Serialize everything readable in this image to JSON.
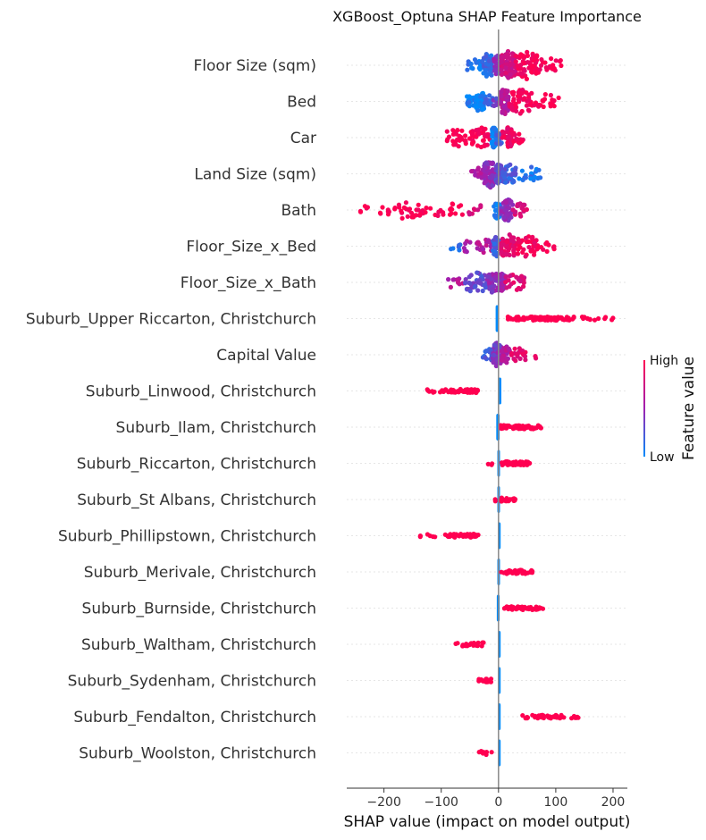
{
  "chart_data": {
    "type": "scatter",
    "subtype": "shap-beeswarm",
    "title": "XGBoost_Optuna SHAP Feature Importance",
    "xlabel": "SHAP value (impact on model output)",
    "xlim": [
      -265,
      225
    ],
    "xticks": [
      -200,
      -100,
      0,
      100,
      200
    ],
    "xtick_labels": [
      "−200",
      "−100",
      "0",
      "100",
      "200"
    ],
    "colorbar": {
      "label": "Feature value",
      "high": "High",
      "low": "Low"
    },
    "colors": {
      "low": "#008bfb",
      "mid": "#a020b0",
      "high": "#ff0051",
      "axis": "#888888",
      "grid": "#e6e6e6"
    },
    "features": [
      {
        "name": "Floor Size (sqm)",
        "mode": "cont",
        "segments": [
          [
            -60,
            -28,
            0.1,
            20
          ],
          [
            -28,
            -8,
            0.15,
            50
          ],
          [
            -8,
            5,
            0.45,
            40
          ],
          [
            5,
            30,
            0.75,
            70
          ],
          [
            30,
            70,
            0.95,
            60
          ],
          [
            70,
            112,
            1.0,
            20
          ]
        ]
      },
      {
        "name": "Bed",
        "mode": "cont",
        "segments": [
          [
            -55,
            -40,
            0.05,
            15
          ],
          [
            -40,
            -25,
            0.02,
            40
          ],
          [
            -25,
            -10,
            0.15,
            15
          ],
          [
            -10,
            2,
            0.35,
            10
          ],
          [
            2,
            18,
            0.6,
            60
          ],
          [
            18,
            60,
            0.95,
            50
          ],
          [
            60,
            105,
            1.0,
            20
          ]
        ]
      },
      {
        "name": "Car",
        "mode": "cont",
        "segments": [
          [
            -90,
            -50,
            1.0,
            30
          ],
          [
            -50,
            -15,
            1.0,
            40
          ],
          [
            -12,
            -4,
            0.02,
            40
          ],
          [
            -4,
            6,
            0.2,
            20
          ],
          [
            6,
            25,
            0.9,
            40
          ],
          [
            25,
            45,
            0.95,
            15
          ]
        ]
      },
      {
        "name": "Land Size (sqm)",
        "mode": "cont",
        "segments": [
          [
            -50,
            -25,
            0.6,
            15
          ],
          [
            -25,
            -5,
            0.45,
            60
          ],
          [
            -5,
            5,
            0.3,
            40
          ],
          [
            5,
            30,
            0.2,
            40
          ],
          [
            30,
            75,
            0.1,
            20
          ]
        ]
      },
      {
        "name": "Bath",
        "mode": "cont",
        "segments": [
          [
            -245,
            -200,
            1.0,
            8
          ],
          [
            -200,
            -130,
            1.0,
            30
          ],
          [
            -130,
            -60,
            1.0,
            20
          ],
          [
            -60,
            -10,
            0.8,
            8
          ],
          [
            -8,
            3,
            0.05,
            30
          ],
          [
            3,
            25,
            0.45,
            45
          ],
          [
            25,
            50,
            0.8,
            20
          ]
        ]
      },
      {
        "name": "Floor_Size_x_Bed",
        "mode": "cont",
        "segments": [
          [
            -95,
            -60,
            0.1,
            6
          ],
          [
            -60,
            -10,
            0.6,
            25
          ],
          [
            -10,
            3,
            0.2,
            40
          ],
          [
            3,
            30,
            0.85,
            50
          ],
          [
            30,
            70,
            0.95,
            40
          ],
          [
            70,
            98,
            1.0,
            10
          ]
        ]
      },
      {
        "name": "Floor_Size_x_Bath",
        "mode": "cont",
        "segments": [
          [
            -90,
            -60,
            0.6,
            10
          ],
          [
            -60,
            -20,
            0.3,
            40
          ],
          [
            -20,
            0,
            0.45,
            40
          ],
          [
            0,
            12,
            0.5,
            40
          ],
          [
            12,
            45,
            0.8,
            25
          ]
        ]
      },
      {
        "name": "Suburb_Upper Riccarton, Christchurch",
        "mode": "dummy",
        "line": [
          -5,
          0
        ],
        "reds": [
          [
            15,
            40,
            20
          ],
          [
            40,
            90,
            40
          ],
          [
            90,
            150,
            30
          ],
          [
            150,
            200,
            10
          ]
        ]
      },
      {
        "name": "Capital Value",
        "mode": "cont",
        "segments": [
          [
            -30,
            -10,
            0.2,
            15
          ],
          [
            -10,
            5,
            0.4,
            50
          ],
          [
            5,
            20,
            0.6,
            30
          ],
          [
            20,
            50,
            0.85,
            20
          ],
          [
            60,
            68,
            0.9,
            2
          ]
        ]
      },
      {
        "name": "Suburb_Linwood, Christchurch",
        "mode": "dummy",
        "line": [
          0,
          5
        ],
        "reds": [
          [
            -125,
            -95,
            10
          ],
          [
            -95,
            -65,
            20
          ],
          [
            -65,
            -35,
            30
          ]
        ]
      },
      {
        "name": "Suburb_Ilam, Christchurch",
        "mode": "dummy",
        "line": [
          -4,
          2
        ],
        "reds": [
          [
            3,
            40,
            35
          ],
          [
            40,
            78,
            30
          ]
        ]
      },
      {
        "name": "Suburb_Riccarton, Christchurch",
        "mode": "dummy",
        "line": [
          -2,
          2
        ],
        "reds": [
          [
            -20,
            -8,
            3
          ],
          [
            5,
            30,
            25
          ],
          [
            30,
            55,
            25
          ]
        ]
      },
      {
        "name": "Suburb_St Albans, Christchurch",
        "mode": "dummy",
        "line": [
          -2,
          2
        ],
        "reds": [
          [
            -8,
            -4,
            2
          ],
          [
            4,
            30,
            20
          ]
        ]
      },
      {
        "name": "Suburb_Phillipstown, Christchurch",
        "mode": "dummy",
        "line": [
          -1,
          3
        ],
        "reds": [
          [
            -138,
            -110,
            6
          ],
          [
            -100,
            -60,
            15
          ],
          [
            -60,
            -35,
            20
          ]
        ]
      },
      {
        "name": "Suburb_Merivale, Christchurch",
        "mode": "dummy",
        "line": [
          -2,
          2
        ],
        "reds": [
          [
            4,
            30,
            15
          ],
          [
            30,
            62,
            20
          ]
        ]
      },
      {
        "name": "Suburb_Burnside, Christchurch",
        "mode": "dummy",
        "line": [
          -3,
          2
        ],
        "reds": [
          [
            10,
            40,
            20
          ],
          [
            40,
            78,
            25
          ]
        ]
      },
      {
        "name": "Suburb_Waltham, Christchurch",
        "mode": "dummy",
        "line": [
          -1,
          3
        ],
        "reds": [
          [
            -75,
            -55,
            6
          ],
          [
            -55,
            -20,
            15
          ]
        ]
      },
      {
        "name": "Suburb_Sydenham, Christchurch",
        "mode": "dummy",
        "line": [
          -1,
          3
        ],
        "reds": [
          [
            -40,
            -10,
            15
          ]
        ]
      },
      {
        "name": "Suburb_Fendalton, Christchurch",
        "mode": "dummy",
        "line": [
          -1,
          3
        ],
        "reds": [
          [
            40,
            100,
            25
          ],
          [
            100,
            140,
            15
          ]
        ]
      },
      {
        "name": "Suburb_Woolston, Christchurch",
        "mode": "dummy",
        "line": [
          -1,
          3
        ],
        "reds": [
          [
            -35,
            -10,
            10
          ]
        ]
      }
    ]
  }
}
